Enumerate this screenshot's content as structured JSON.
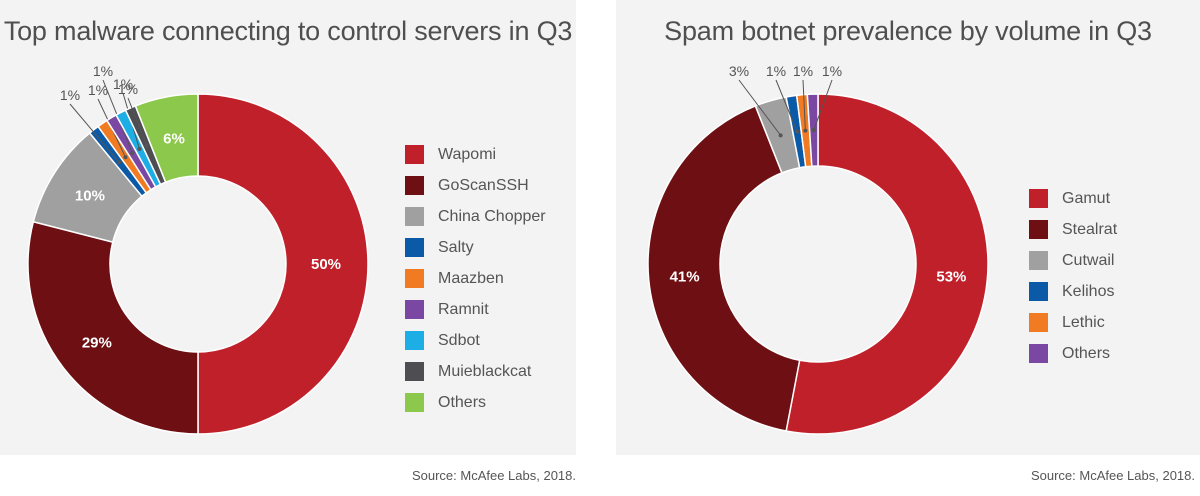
{
  "chart_data": [
    {
      "type": "pie",
      "title": "Top malware connecting to control servers in Q3",
      "source": "Source: McAfee Labs, 2018.",
      "slices": [
        {
          "label": "Wapomi",
          "value": 50,
          "display": "50%",
          "color": "#c0202a"
        },
        {
          "label": "GoScanSSH",
          "value": 29,
          "display": "29%",
          "color": "#6e1013"
        },
        {
          "label": "China Chopper",
          "value": 10,
          "display": "10%",
          "color": "#a0a0a0"
        },
        {
          "label": "Salty",
          "value": 1,
          "display": "1%",
          "color": "#0b5aa8"
        },
        {
          "label": "Maazben",
          "value": 1,
          "display": "1%",
          "color": "#f07b22"
        },
        {
          "label": "Ramnit",
          "value": 1,
          "display": "1%",
          "color": "#7a48a2"
        },
        {
          "label": "Sdbot",
          "value": 1,
          "display": "1%",
          "color": "#1eaee6"
        },
        {
          "label": "Muieblackcat",
          "value": 1,
          "display": "1%",
          "color": "#4d4d52"
        },
        {
          "label": "Others",
          "value": 6,
          "display": "6%",
          "color": "#8cc84b"
        }
      ]
    },
    {
      "type": "pie",
      "title": "Spam botnet prevalence by volume in Q3",
      "source": "Source: McAfee Labs, 2018.",
      "slices": [
        {
          "label": "Gamut",
          "value": 53,
          "display": "53%",
          "color": "#c0202a"
        },
        {
          "label": "Stealrat",
          "value": 41,
          "display": "41%",
          "color": "#6e1013"
        },
        {
          "label": "Cutwail",
          "value": 3,
          "display": "3%",
          "color": "#a0a0a0"
        },
        {
          "label": "Kelihos",
          "value": 1,
          "display": "1%",
          "color": "#0b5aa8"
        },
        {
          "label": "Lethic",
          "value": 1,
          "display": "1%",
          "color": "#f07b22"
        },
        {
          "label": "Others",
          "value": 1,
          "display": "1%",
          "color": "#7a48a2"
        }
      ]
    }
  ]
}
